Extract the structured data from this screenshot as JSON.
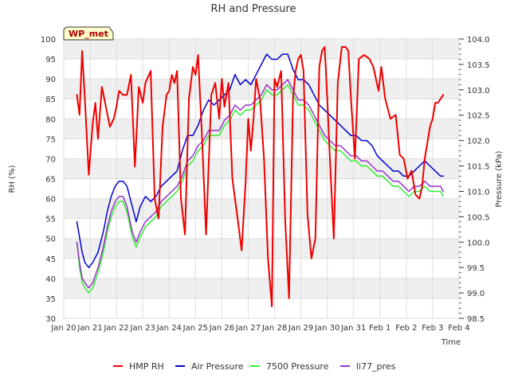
{
  "chart_data": {
    "type": "line",
    "title": "RH and Pressure",
    "xlabel": "Time",
    "ylabel": "RH (%)",
    "y2label": "Pressure (kPa)",
    "badge": "WP_met",
    "x_ticks": [
      "Jan 20",
      "Jan 21",
      "Jan 22",
      "Jan 23",
      "Jan 24",
      "Jan 25",
      "Jan 26",
      "Jan 27",
      "Jan 28",
      "Jan 29",
      "Jan 30",
      "Jan 31",
      "Feb 1",
      "Feb 2",
      "Feb 3",
      "Feb 4"
    ],
    "xlim": [
      0,
      15
    ],
    "ylim": [
      30,
      100
    ],
    "y_ticks": [
      30,
      35,
      40,
      45,
      50,
      55,
      60,
      65,
      70,
      75,
      80,
      85,
      90,
      95,
      100
    ],
    "y2lim": [
      98.5,
      104.0
    ],
    "y2_ticks": [
      "98.5",
      "99.0",
      "99.5",
      "100.0",
      "100.5",
      "101.0",
      "101.5",
      "102.0",
      "102.5",
      "103.0",
      "103.5",
      "104.0"
    ],
    "grid": true,
    "legend_position": "bottom",
    "series": [
      {
        "name": "HMP RH",
        "color": "#ee0000",
        "axis": "left",
        "x": [
          0.5,
          0.6,
          0.7,
          0.8,
          0.95,
          1.1,
          1.2,
          1.3,
          1.45,
          1.6,
          1.75,
          1.9,
          2.0,
          2.1,
          2.25,
          2.4,
          2.55,
          2.7,
          2.85,
          3.0,
          3.1,
          3.3,
          3.45,
          3.6,
          3.75,
          3.9,
          4.0,
          4.1,
          4.2,
          4.3,
          4.45,
          4.6,
          4.75,
          4.9,
          5.0,
          5.1,
          5.25,
          5.4,
          5.6,
          5.75,
          5.9,
          6.0,
          6.1,
          6.25,
          6.4,
          6.6,
          6.75,
          6.9,
          7.0,
          7.1,
          7.2,
          7.3,
          7.45,
          7.6,
          7.75,
          7.9,
          8.0,
          8.1,
          8.25,
          8.4,
          8.55,
          8.7,
          8.8,
          8.9,
          9.0,
          9.1,
          9.25,
          9.4,
          9.55,
          9.7,
          9.8,
          9.9,
          10.0,
          10.1,
          10.25,
          10.4,
          10.55,
          10.7,
          10.8,
          10.9,
          11.05,
          11.2,
          11.4,
          11.6,
          11.75,
          11.85,
          11.95,
          12.05,
          12.2,
          12.4,
          12.6,
          12.75,
          12.9,
          13.05,
          13.2,
          13.35,
          13.5,
          13.6,
          13.7,
          13.8,
          13.9,
          14.0,
          14.1,
          14.2,
          14.3,
          14.4
        ],
        "values": [
          86,
          81,
          97,
          85,
          66,
          79,
          84,
          75,
          88,
          83,
          78,
          80,
          83,
          87,
          86,
          86,
          91,
          68,
          88,
          84,
          89,
          92,
          60,
          55,
          78,
          86,
          87,
          91,
          89,
          92,
          60,
          51,
          85,
          93,
          91,
          96,
          75,
          51,
          86,
          89,
          80,
          90,
          83,
          89,
          65,
          55,
          47,
          64,
          80,
          72,
          80,
          90,
          85,
          70,
          45,
          33,
          90,
          88,
          92,
          55,
          35,
          85,
          92,
          95,
          96,
          92,
          56,
          45,
          50,
          93,
          97,
          98,
          85,
          70,
          50,
          89,
          98,
          98,
          97,
          85,
          70,
          95,
          96,
          95,
          93,
          90,
          87,
          93,
          85,
          80,
          81,
          71,
          70,
          65,
          67,
          61,
          60,
          63,
          70,
          74,
          78,
          80,
          84,
          84,
          85,
          86
        ]
      },
      {
        "name": "Air Pressure",
        "color": "#0000cc",
        "axis": "right",
        "x": [
          0.5,
          0.6,
          0.7,
          0.8,
          0.95,
          1.1,
          1.3,
          1.5,
          1.65,
          1.8,
          1.95,
          2.1,
          2.25,
          2.4,
          2.6,
          2.75,
          2.9,
          3.1,
          3.3,
          3.5,
          3.7,
          3.9,
          4.1,
          4.3,
          4.5,
          4.7,
          4.9,
          5.1,
          5.3,
          5.5,
          5.7,
          5.9,
          6.1,
          6.3,
          6.5,
          6.7,
          6.9,
          7.1,
          7.3,
          7.5,
          7.7,
          7.9,
          8.1,
          8.3,
          8.5,
          8.7,
          8.9,
          9.1,
          9.3,
          9.5,
          9.7,
          9.9,
          10.1,
          10.3,
          10.5,
          10.7,
          10.9,
          11.1,
          11.3,
          11.5,
          11.7,
          11.9,
          12.1,
          12.3,
          12.5,
          12.7,
          12.9,
          13.1,
          13.3,
          13.5,
          13.7,
          13.9,
          14.1,
          14.3,
          14.4
        ],
        "values": [
          100.4,
          100.1,
          99.8,
          99.6,
          99.5,
          99.6,
          99.8,
          100.2,
          100.6,
          100.9,
          101.1,
          101.2,
          101.2,
          101.1,
          100.7,
          100.4,
          100.7,
          100.9,
          100.8,
          100.9,
          101.1,
          101.2,
          101.3,
          101.4,
          101.8,
          102.1,
          102.1,
          102.3,
          102.6,
          102.8,
          102.7,
          102.8,
          102.9,
          103.0,
          103.3,
          103.1,
          103.2,
          103.1,
          103.3,
          103.5,
          103.7,
          103.6,
          103.6,
          103.7,
          103.7,
          103.4,
          103.2,
          103.2,
          103.1,
          102.9,
          102.7,
          102.6,
          102.5,
          102.4,
          102.3,
          102.2,
          102.1,
          102.1,
          102.0,
          102.0,
          101.9,
          101.7,
          101.6,
          101.5,
          101.4,
          101.4,
          101.3,
          101.3,
          101.4,
          101.5,
          101.6,
          101.5,
          101.4,
          101.3,
          101.3
        ]
      },
      {
        "name": "7500 Pressure",
        "color": "#33ee33",
        "axis": "right",
        "x": [
          0.5,
          0.6,
          0.7,
          0.8,
          0.95,
          1.1,
          1.3,
          1.5,
          1.65,
          1.8,
          1.95,
          2.1,
          2.25,
          2.4,
          2.6,
          2.75,
          2.9,
          3.1,
          3.3,
          3.5,
          3.7,
          3.9,
          4.1,
          4.3,
          4.5,
          4.7,
          4.9,
          5.1,
          5.3,
          5.5,
          5.7,
          5.9,
          6.1,
          6.3,
          6.5,
          6.7,
          6.9,
          7.1,
          7.3,
          7.5,
          7.7,
          7.9,
          8.1,
          8.3,
          8.5,
          8.7,
          8.9,
          9.1,
          9.3,
          9.5,
          9.7,
          9.9,
          10.1,
          10.3,
          10.5,
          10.7,
          10.9,
          11.1,
          11.3,
          11.5,
          11.7,
          11.9,
          12.1,
          12.3,
          12.5,
          12.7,
          12.9,
          13.1,
          13.3,
          13.5,
          13.7,
          13.9,
          14.1,
          14.3,
          14.4
        ],
        "values": [
          100.0,
          99.5,
          99.2,
          99.1,
          99.0,
          99.1,
          99.4,
          99.8,
          100.2,
          100.5,
          100.7,
          100.8,
          100.8,
          100.6,
          100.1,
          99.9,
          100.1,
          100.3,
          100.4,
          100.5,
          100.7,
          100.8,
          100.9,
          101.0,
          101.2,
          101.5,
          101.6,
          101.8,
          101.9,
          102.1,
          102.1,
          102.1,
          102.3,
          102.4,
          102.6,
          102.5,
          102.6,
          102.6,
          102.7,
          102.8,
          103.0,
          102.9,
          102.9,
          103.0,
          103.1,
          102.9,
          102.7,
          102.7,
          102.6,
          102.4,
          102.2,
          102.0,
          101.9,
          101.8,
          101.8,
          101.7,
          101.6,
          101.6,
          101.5,
          101.5,
          101.4,
          101.3,
          101.3,
          101.2,
          101.1,
          101.1,
          101.0,
          100.9,
          101.0,
          101.0,
          101.1,
          101.0,
          101.0,
          101.0,
          100.9
        ]
      },
      {
        "name": "li77_pres",
        "color": "#9933cc",
        "axis": "right",
        "x": [
          0.5,
          0.6,
          0.7,
          0.8,
          0.95,
          1.1,
          1.3,
          1.5,
          1.65,
          1.8,
          1.95,
          2.1,
          2.25,
          2.4,
          2.6,
          2.75,
          2.9,
          3.1,
          3.3,
          3.5,
          3.7,
          3.9,
          4.1,
          4.3,
          4.5,
          4.7,
          4.9,
          5.1,
          5.3,
          5.5,
          5.7,
          5.9,
          6.1,
          6.3,
          6.5,
          6.7,
          6.9,
          7.1,
          7.3,
          7.5,
          7.7,
          7.9,
          8.1,
          8.3,
          8.5,
          8.7,
          8.9,
          9.1,
          9.3,
          9.5,
          9.7,
          9.9,
          10.1,
          10.3,
          10.5,
          10.7,
          10.9,
          11.1,
          11.3,
          11.5,
          11.7,
          11.9,
          12.1,
          12.3,
          12.5,
          12.7,
          12.9,
          13.1,
          13.3,
          13.5,
          13.7,
          13.9,
          14.1,
          14.3,
          14.4
        ],
        "values": [
          100.0,
          99.6,
          99.3,
          99.2,
          99.1,
          99.2,
          99.5,
          99.9,
          100.3,
          100.6,
          100.8,
          100.9,
          100.9,
          100.7,
          100.2,
          100.0,
          100.2,
          100.4,
          100.5,
          100.6,
          100.8,
          100.9,
          101.0,
          101.1,
          101.3,
          101.6,
          101.7,
          101.9,
          102.0,
          102.2,
          102.2,
          102.2,
          102.4,
          102.5,
          102.7,
          102.6,
          102.7,
          102.7,
          102.8,
          102.9,
          103.1,
          103.0,
          103.0,
          103.1,
          103.2,
          103.0,
          102.8,
          102.8,
          102.7,
          102.5,
          102.3,
          102.1,
          102.0,
          101.9,
          101.9,
          101.8,
          101.7,
          101.7,
          101.6,
          101.6,
          101.5,
          101.4,
          101.4,
          101.3,
          101.2,
          101.2,
          101.1,
          101.0,
          101.1,
          101.1,
          101.2,
          101.1,
          101.1,
          101.1,
          101.0
        ]
      }
    ]
  }
}
